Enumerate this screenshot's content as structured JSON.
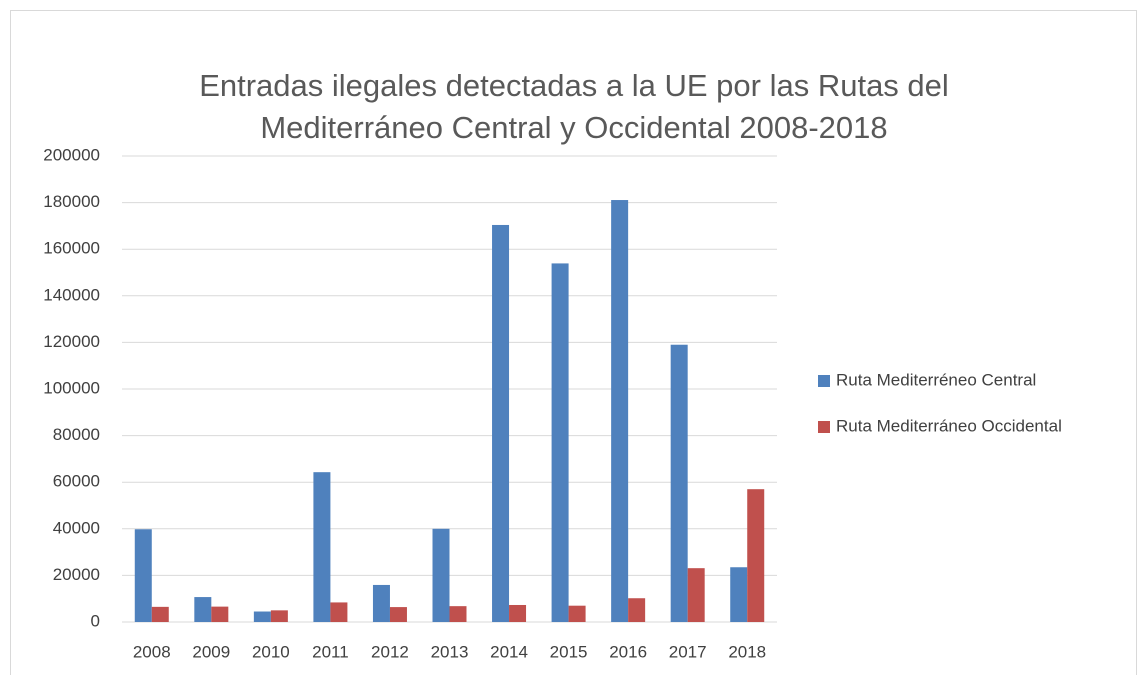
{
  "chart_data": {
    "type": "bar",
    "title": [
      "Entradas ilegales detectadas a la UE por las Rutas del",
      "Mediterráneo Central y Occidental 2008-2018"
    ],
    "categories": [
      "2008",
      "2009",
      "2010",
      "2011",
      "2012",
      "2013",
      "2014",
      "2015",
      "2016",
      "2017",
      "2018"
    ],
    "series": [
      {
        "name": "Ruta Mediterréneo Central",
        "color": "#4f81bd",
        "values": [
          39800,
          10700,
          4500,
          64300,
          15900,
          40000,
          170400,
          153900,
          181100,
          119000,
          23500
        ]
      },
      {
        "name": "Ruta Mediterráneo Occidental",
        "color": "#c0504d",
        "values": [
          6500,
          6600,
          5000,
          8400,
          6400,
          6800,
          7300,
          7000,
          10200,
          23100,
          57000
        ]
      }
    ],
    "ylim": [
      0,
      200000
    ],
    "yticks": [
      0,
      20000,
      40000,
      60000,
      80000,
      100000,
      120000,
      140000,
      160000,
      180000,
      200000
    ],
    "grid": true,
    "legend": "right"
  }
}
